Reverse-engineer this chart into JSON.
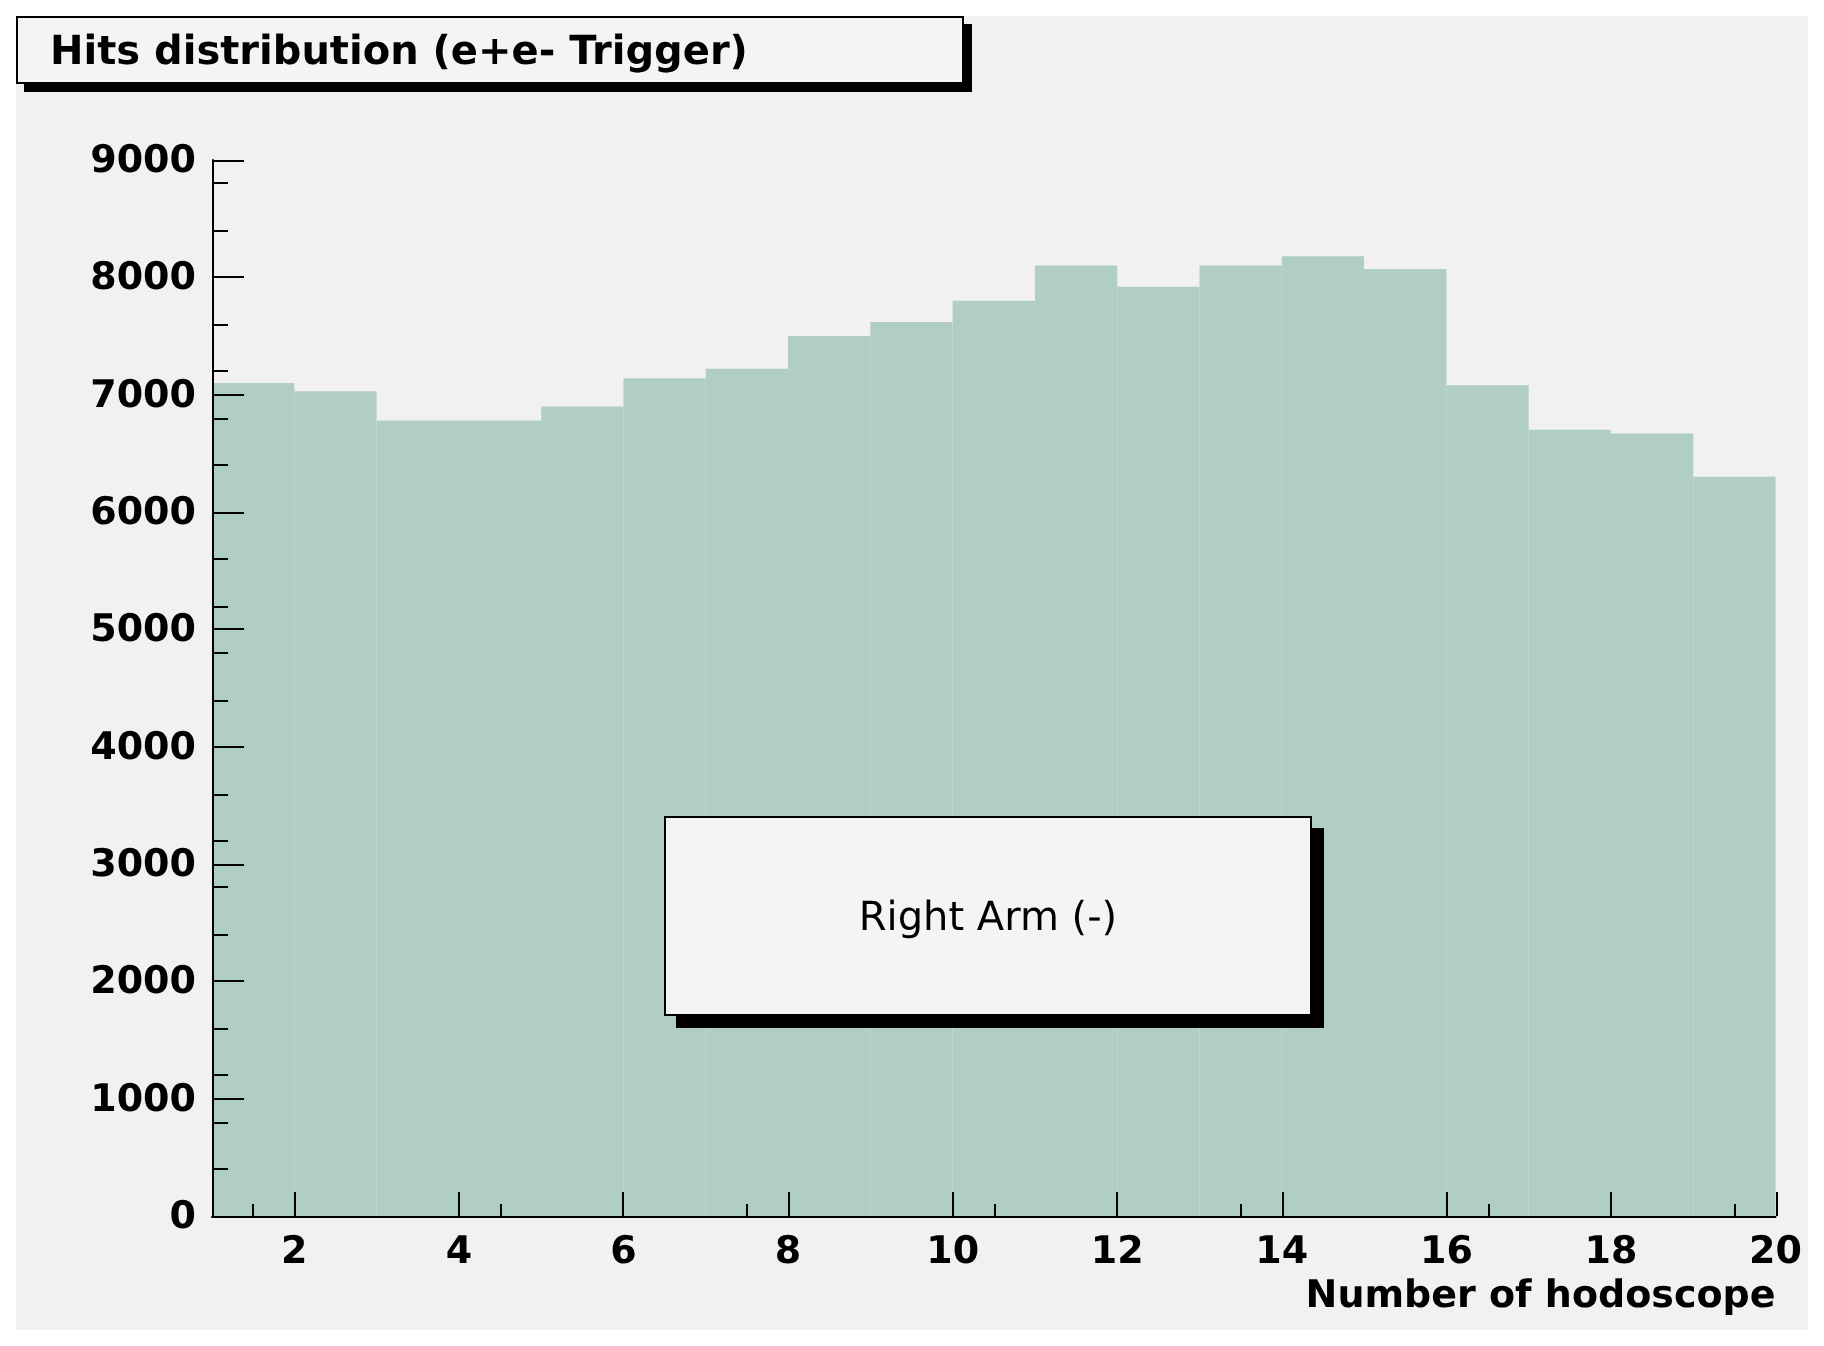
{
  "chart_data": {
    "type": "histogram",
    "title": "Hits distribution (e+e- Trigger)",
    "xlabel": "Number of hodoscope",
    "bins": [
      1,
      2,
      3,
      4,
      5,
      6,
      7,
      8,
      9,
      10,
      11,
      12,
      13,
      14,
      15,
      16,
      17,
      18,
      19,
      20
    ],
    "values": [
      7100,
      7030,
      6780,
      6780,
      6900,
      7140,
      7220,
      7500,
      7620,
      7800,
      8100,
      7920,
      8100,
      8180,
      8070,
      7080,
      6700,
      6670,
      6300
    ],
    "color": "#b0cdc6",
    "xlim": [
      1,
      20
    ],
    "xticks": [
      2,
      4,
      6,
      8,
      10,
      12,
      14,
      16,
      18,
      20
    ],
    "ylim": [
      0,
      9000
    ],
    "yticks": [
      0,
      1000,
      2000,
      3000,
      4000,
      5000,
      6000,
      7000,
      8000,
      9000
    ],
    "annotations": [
      "Right Arm (-)"
    ],
    "grid": false
  }
}
